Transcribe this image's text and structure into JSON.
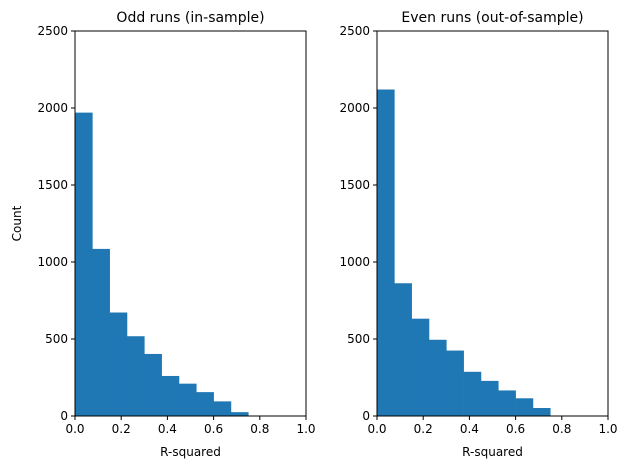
{
  "chart_data": [
    {
      "type": "bar",
      "title": "Odd runs (in-sample)",
      "xlabel": "R-squared",
      "ylabel": "Count",
      "xlim": [
        0,
        1
      ],
      "ylim": [
        0,
        2500
      ],
      "xticks": [
        "0.0",
        "0.2",
        "0.4",
        "0.6",
        "0.8",
        "1.0"
      ],
      "yticks": [
        "0",
        "500",
        "1000",
        "1500",
        "2000",
        "2500"
      ],
      "bin_width": 0.075,
      "bins": [
        0.0,
        0.075,
        0.15,
        0.225,
        0.3,
        0.375,
        0.45,
        0.525,
        0.6,
        0.675
      ],
      "values": [
        1970,
        1085,
        672,
        518,
        403,
        260,
        210,
        155,
        95,
        25
      ],
      "color": "#1f77b4"
    },
    {
      "type": "bar",
      "title": "Even runs (out-of-sample)",
      "xlabel": "R-squared",
      "ylabel": "",
      "xlim": [
        0,
        1
      ],
      "ylim": [
        0,
        2500
      ],
      "xticks": [
        "0.0",
        "0.2",
        "0.4",
        "0.6",
        "0.8",
        "1.0"
      ],
      "yticks": [
        "0",
        "500",
        "1000",
        "1500",
        "2000",
        "2500"
      ],
      "bin_width": 0.075,
      "bins": [
        0.0,
        0.075,
        0.15,
        0.225,
        0.3,
        0.375,
        0.45,
        0.525,
        0.6,
        0.675
      ],
      "values": [
        2120,
        862,
        632,
        495,
        425,
        287,
        228,
        166,
        115,
        52
      ],
      "color": "#1f77b4"
    }
  ]
}
